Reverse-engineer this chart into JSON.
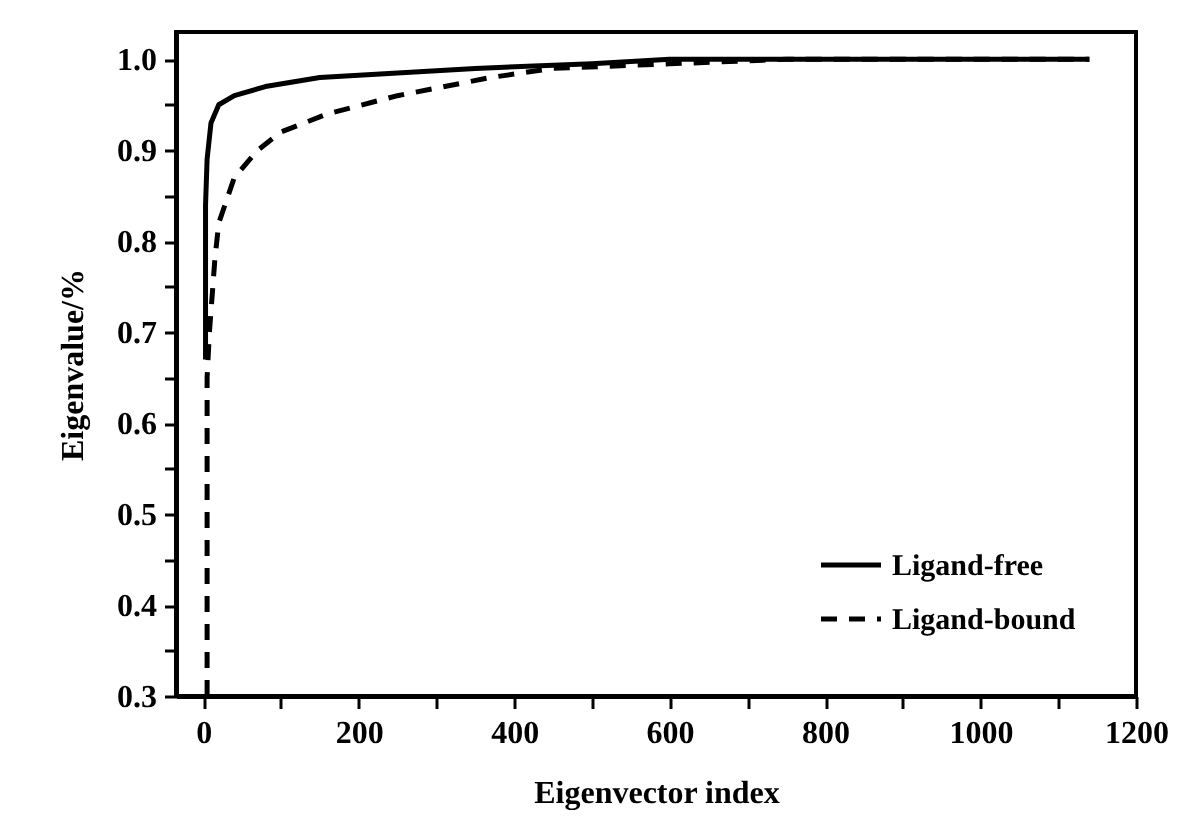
{
  "chart_data": {
    "type": "line",
    "xlabel": "Eigenvector index",
    "ylabel": "Eigenvalue/%",
    "xlim": [
      -35,
      1200
    ],
    "ylim": [
      0.3,
      1.03
    ],
    "xticks": [
      0,
      {
        "value": 100,
        "label": null
      },
      200,
      {
        "value": 300,
        "label": null
      },
      400,
      {
        "value": 500,
        "label": null
      },
      600,
      {
        "value": 700,
        "label": null
      },
      800,
      {
        "value": 900,
        "label": null
      },
      1000,
      {
        "value": 1100,
        "label": null
      },
      1200
    ],
    "yticks": [
      {
        "value": 0.3,
        "label": "0.3"
      },
      {
        "value": 0.35,
        "label": null
      },
      {
        "value": 0.4,
        "label": "0.4"
      },
      {
        "value": 0.45,
        "label": null
      },
      {
        "value": 0.5,
        "label": "0.5"
      },
      {
        "value": 0.55,
        "label": null
      },
      {
        "value": 0.6,
        "label": "0.6"
      },
      {
        "value": 0.65,
        "label": null
      },
      {
        "value": 0.7,
        "label": "0.7"
      },
      {
        "value": 0.75,
        "label": null
      },
      {
        "value": 0.8,
        "label": "0.8"
      },
      {
        "value": 0.85,
        "label": null
      },
      {
        "value": 0.9,
        "label": "0.9"
      },
      {
        "value": 0.95,
        "label": null
      },
      {
        "value": 1.0,
        "label": "1.0"
      }
    ],
    "grid": false,
    "legend": "bottom right",
    "marker": "none",
    "series": [
      {
        "name": "Ligand-free",
        "color": "#000000",
        "line_style": "solid",
        "x": [
          3,
          3,
          5,
          10,
          20,
          40,
          80,
          150,
          250,
          350,
          500,
          600,
          1140
        ],
        "values": [
          0.67,
          0.84,
          0.89,
          0.93,
          0.95,
          0.96,
          0.97,
          0.98,
          0.985,
          0.99,
          0.995,
          1.0,
          1.0
        ]
      },
      {
        "name": "Ligand-bound",
        "color": "#000000",
        "line_style": "dashed",
        "x": [
          5,
          5,
          8,
          15,
          20,
          40,
          70,
          100,
          160,
          250,
          370,
          450,
          600,
          750,
          1140
        ],
        "values": [
          0.3,
          0.65,
          0.7,
          0.78,
          0.82,
          0.87,
          0.9,
          0.92,
          0.94,
          0.96,
          0.98,
          0.99,
          0.995,
          1.0,
          1.0
        ]
      }
    ]
  }
}
